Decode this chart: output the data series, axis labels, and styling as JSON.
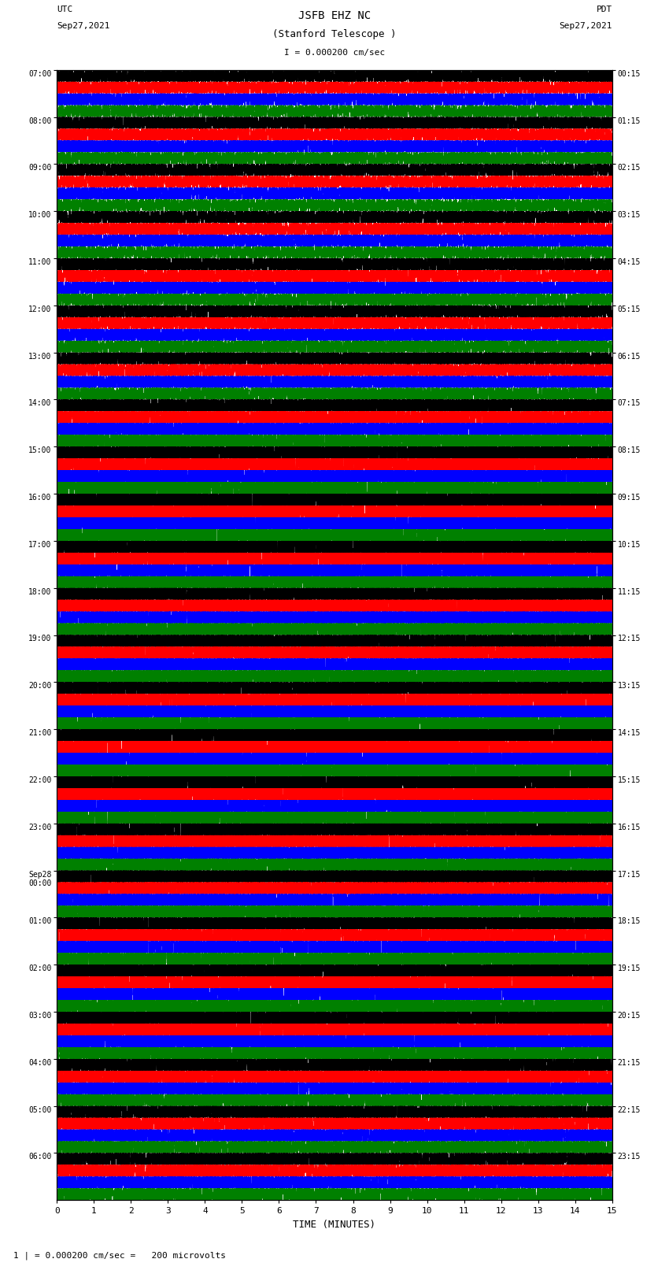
{
  "title_line1": "JSFB EHZ NC",
  "title_line2": "(Stanford Telescope )",
  "title_scale": "I = 0.000200 cm/sec",
  "left_header": "UTC",
  "left_date": "Sep27,2021",
  "right_header": "PDT",
  "right_date": "Sep27,2021",
  "xlabel": "TIME (MINUTES)",
  "footnote": "= 0.000200 cm/sec =   200 microvolts",
  "footnote_prefix": "1 |",
  "xlim": [
    0,
    15
  ],
  "xticks": [
    0,
    1,
    2,
    3,
    4,
    5,
    6,
    7,
    8,
    9,
    10,
    11,
    12,
    13,
    14,
    15
  ],
  "utc_labels": [
    "07:00",
    "08:00",
    "09:00",
    "10:00",
    "11:00",
    "12:00",
    "13:00",
    "14:00",
    "15:00",
    "16:00",
    "17:00",
    "18:00",
    "19:00",
    "20:00",
    "21:00",
    "22:00",
    "23:00",
    "Sep28\n00:00",
    "01:00",
    "02:00",
    "03:00",
    "04:00",
    "05:00",
    "06:00"
  ],
  "pdt_labels": [
    "00:15",
    "01:15",
    "02:15",
    "03:15",
    "04:15",
    "05:15",
    "06:15",
    "07:15",
    "08:15",
    "09:15",
    "10:15",
    "11:15",
    "12:15",
    "13:15",
    "14:15",
    "15:15",
    "16:15",
    "17:15",
    "18:15",
    "19:15",
    "20:15",
    "21:15",
    "22:15",
    "23:15"
  ],
  "n_rows": 24,
  "traces_per_row": 4,
  "colors": [
    "black",
    "red",
    "blue",
    "green"
  ],
  "bg_color": "white",
  "fig_width": 8.5,
  "fig_height": 16.13,
  "dpi": 100
}
